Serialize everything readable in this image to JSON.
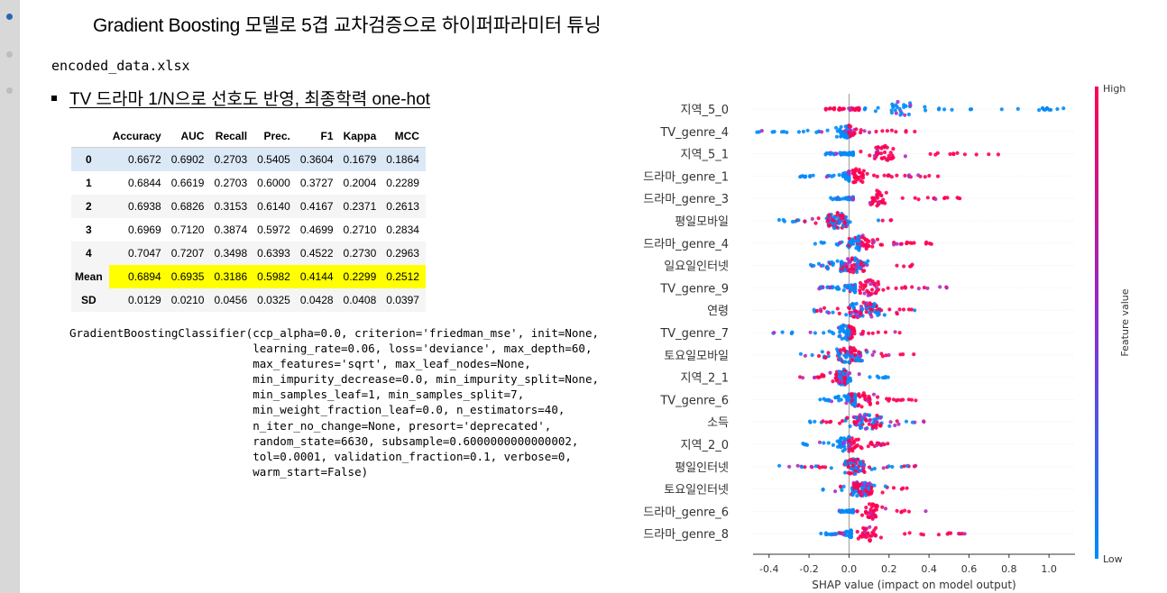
{
  "slide": {
    "title": "Gradient Boosting 모델로 5겹 교차검증으로 하이퍼파라미터 튜닝",
    "filename": "encoded_data.xlsx",
    "bullet": "TV 드라마 1/N으로 선호도 반영, 최종학력 one-hot"
  },
  "table": {
    "columns": [
      "",
      "Accuracy",
      "AUC",
      "Recall",
      "Prec.",
      "F1",
      "Kappa",
      "MCC"
    ],
    "rows": [
      [
        "0",
        "0.6672",
        "0.6902",
        "0.2703",
        "0.5405",
        "0.3604",
        "0.1679",
        "0.1864"
      ],
      [
        "1",
        "0.6844",
        "0.6619",
        "0.2703",
        "0.6000",
        "0.3727",
        "0.2004",
        "0.2289"
      ],
      [
        "2",
        "0.6938",
        "0.6826",
        "0.3153",
        "0.6140",
        "0.4167",
        "0.2371",
        "0.2613"
      ],
      [
        "3",
        "0.6969",
        "0.7120",
        "0.3874",
        "0.5972",
        "0.4699",
        "0.2710",
        "0.2834"
      ],
      [
        "4",
        "0.7047",
        "0.7207",
        "0.3498",
        "0.6393",
        "0.4522",
        "0.2730",
        "0.2963"
      ],
      [
        "Mean",
        "0.6894",
        "0.6935",
        "0.3186",
        "0.5982",
        "0.4144",
        "0.2299",
        "0.2512"
      ],
      [
        "SD",
        "0.0129",
        "0.0210",
        "0.0456",
        "0.0325",
        "0.0428",
        "0.0408",
        "0.0397"
      ]
    ]
  },
  "code_text": "GradientBoostingClassifier(ccp_alpha=0.0, criterion='friedman_mse', init=None,\n                           learning_rate=0.06, loss='deviance', max_depth=60,\n                           max_features='sqrt', max_leaf_nodes=None,\n                           min_impurity_decrease=0.0, min_impurity_split=None,\n                           min_samples_leaf=1, min_samples_split=7,\n                           min_weight_fraction_leaf=0.0, n_estimators=40,\n                           n_iter_no_change=None, presort='deprecated',\n                           random_state=6630, subsample=0.6000000000000002,\n                           tol=0.0001, validation_fraction=0.1, verbose=0,\n                           warm_start=False)",
  "chart_data": {
    "type": "scatter",
    "xlabel": "SHAP value (impact on model output)",
    "xlim": [
      -0.48,
      1.13
    ],
    "x_ticks": [
      -0.4,
      -0.2,
      0.0,
      0.2,
      0.4,
      0.6,
      0.8,
      1.0
    ],
    "x_tick_labels": [
      "-0.4",
      "-0.2",
      "0.0",
      "0.2",
      "0.4",
      "0.6",
      "0.8",
      "1.0"
    ],
    "colorbar": {
      "label": "Feature value",
      "high": "High",
      "low": "Low",
      "color_high": "#ff0052",
      "color_low": "#008bfb"
    },
    "features": [
      {
        "name": "지역_5_0",
        "low_range": [
          0.02,
          1.1
        ],
        "high_range": [
          -0.12,
          0.05
        ],
        "spread": 0.05
      },
      {
        "name": "TV_genre_4",
        "low_range": [
          -0.47,
          0.0
        ],
        "high_range": [
          0.0,
          0.35
        ],
        "spread": 0.03
      },
      {
        "name": "지역_5_1",
        "low_range": [
          -0.12,
          0.02
        ],
        "high_range": [
          0.03,
          0.77
        ],
        "spread": 0.05
      },
      {
        "name": "드라마_genre_1",
        "low_range": [
          -0.27,
          0.0
        ],
        "high_range": [
          0.0,
          0.45
        ],
        "spread": 0.03
      },
      {
        "name": "드라마_genre_3",
        "low_range": [
          -0.1,
          0.02
        ],
        "high_range": [
          0.05,
          0.6
        ],
        "spread": 0.04
      },
      {
        "name": "평일모바일",
        "low_range": [
          -0.38,
          0.2
        ],
        "high_range": [
          -0.3,
          0.25
        ],
        "spread": 0.05
      },
      {
        "name": "드라마_genre_4",
        "low_range": [
          -0.17,
          0.05
        ],
        "high_range": [
          0.0,
          0.43
        ],
        "spread": 0.05
      },
      {
        "name": "일요일인터넷",
        "low_range": [
          -0.2,
          0.1
        ],
        "high_range": [
          -0.15,
          0.32
        ],
        "spread": 0.06
      },
      {
        "name": "TV_genre_9",
        "low_range": [
          -0.15,
          0.03
        ],
        "high_range": [
          0.0,
          0.52
        ],
        "spread": 0.05
      },
      {
        "name": "연령",
        "low_range": [
          -0.2,
          0.35
        ],
        "high_range": [
          -0.18,
          0.33
        ],
        "spread": 0.08
      },
      {
        "name": "TV_genre_7",
        "low_range": [
          -0.38,
          0.0
        ],
        "high_range": [
          0.0,
          0.3
        ],
        "spread": 0.03
      },
      {
        "name": "토요일모바일",
        "low_range": [
          -0.25,
          0.1
        ],
        "high_range": [
          -0.2,
          0.35
        ],
        "spread": 0.06
      },
      {
        "name": "지역_2_1",
        "low_range": [
          -0.05,
          0.2
        ],
        "high_range": [
          -0.25,
          -0.02
        ],
        "spread": 0.04
      },
      {
        "name": "TV_genre_6",
        "low_range": [
          -0.15,
          0.03
        ],
        "high_range": [
          0.0,
          0.35
        ],
        "spread": 0.05
      },
      {
        "name": "소득",
        "low_range": [
          -0.2,
          0.35
        ],
        "high_range": [
          -0.18,
          0.4
        ],
        "spread": 0.07
      },
      {
        "name": "지역_2_0",
        "low_range": [
          -0.25,
          0.0
        ],
        "high_range": [
          0.0,
          0.2
        ],
        "spread": 0.05
      },
      {
        "name": "평일인터넷",
        "low_range": [
          -0.36,
          0.3
        ],
        "high_range": [
          -0.25,
          0.42
        ],
        "spread": 0.05
      },
      {
        "name": "토요일인터넷",
        "low_range": [
          -0.15,
          0.2
        ],
        "high_range": [
          -0.1,
          0.3
        ],
        "spread": 0.05
      },
      {
        "name": "드라마_genre_6",
        "low_range": [
          -0.05,
          0.02
        ],
        "high_range": [
          0.0,
          0.48
        ],
        "spread": 0.03
      },
      {
        "name": "드라마_genre_8",
        "low_range": [
          -0.15,
          0.01
        ],
        "high_range": [
          -0.12,
          0.64
        ],
        "spread": 0.04
      }
    ]
  }
}
